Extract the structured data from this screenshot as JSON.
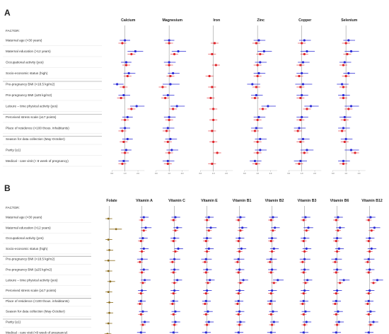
{
  "panel_a": {
    "letter": "A",
    "factor_header": "FACTOR:",
    "factors": [
      "Maternal age (>30 years)",
      "Maternal education (>12 years)",
      "Occupational activity (yes)",
      "Socio-economic status (high)",
      "Pre-pregnancy BMI (<18.5 kg/m2)",
      "Pre-pregnancy BMI (≥25 kg/m2)",
      "Leisure – time physical activity (yes)",
      "Perceived stress scale (≥17 points)",
      "Place of residence (<100 thous. inhabitants)",
      "Season for data collection (May-October)",
      "Parity (≥1)",
      "Medical - care visit (< 8 week of pregnancy)"
    ]
  },
  "panel_b": {
    "letter": "B",
    "factor_header": "FACTOR:",
    "factors": [
      "Maternal age (>30 years)",
      "Maternal education (>12 years)",
      "Occupational activity (yes)",
      "Socio-economic status (high)",
      "Pre-pregnancy BMI (<18.5 kg/m2)",
      "Pre-pregnancy BMI (≥25 kg/m2)",
      "Leisure – time physical activity (yes)",
      "Perceived stress scale (≥17 points)",
      "Place of residence (<100 thous. inhabitants)",
      "Season for data collection (May-October)",
      "Parity (≥1)",
      "Medical - care visit (<8 week of pregnancy)"
    ]
  },
  "colors": {
    "blue": "#2b2bd6",
    "red": "#e0242a",
    "olive": "#8a6a1a",
    "reference_line": "#999999",
    "grid": "#cccccc"
  },
  "chart_data": [
    {
      "type": "scatter",
      "panel": "A",
      "axis_ticks": [
        "0.0",
        "1.0",
        "2.0"
      ],
      "xlim": [
        0,
        2.5
      ],
      "reference_value": 1,
      "series": [
        {
          "name": "Calcium",
          "blue": [
            1.0,
            1.8,
            1.1,
            1.3,
            0.4,
            0.9,
            1.9,
            1.2,
            1.0,
            1.2,
            1.1,
            0.9
          ],
          "red": [
            0.8,
            1.5,
            1.1,
            1.2,
            0.9,
            0.7,
            1.5,
            1.0,
            0.8,
            0.9,
            1.0,
            0.8
          ],
          "blue_lo": [
            0.6,
            1.2,
            0.7,
            0.9,
            0.1,
            0.5,
            1.4,
            0.8,
            0.6,
            0.8,
            0.7,
            0.5
          ],
          "blue_hi": [
            1.4,
            2.4,
            1.5,
            1.8,
            0.9,
            1.4,
            2.5,
            1.6,
            1.4,
            1.6,
            1.5,
            1.3
          ]
        },
        {
          "name": "Magnesium",
          "blue": [
            1.0,
            1.7,
            1.0,
            1.3,
            1.1,
            0.9,
            1.6,
            1.0,
            0.9,
            1.1,
            1.2,
            0.9
          ],
          "red": [
            1.0,
            1.4,
            1.0,
            1.1,
            0.5,
            0.7,
            1.3,
            1.0,
            0.8,
            0.9,
            1.0,
            0.9
          ],
          "blue_lo": [
            0.6,
            1.2,
            0.6,
            0.9,
            0.5,
            0.5,
            1.1,
            0.6,
            0.5,
            0.7,
            0.8,
            0.5
          ],
          "blue_hi": [
            1.4,
            2.3,
            1.5,
            1.8,
            1.8,
            1.4,
            2.2,
            1.5,
            1.4,
            1.6,
            1.7,
            1.4
          ]
        },
        {
          "name": "Iron",
          "blue": [
            null,
            null,
            null,
            null,
            null,
            null,
            null,
            null,
            null,
            null,
            null,
            null
          ],
          "red": [
            1.1,
            0.9,
            1.2,
            0.7,
            0.9,
            0.8,
            1.0,
            1.0,
            0.9,
            1.0,
            1.3,
            0.9
          ],
          "blue_lo": [
            null,
            null,
            null,
            null,
            null,
            null,
            null,
            null,
            null,
            null,
            null,
            null
          ],
          "blue_hi": [
            null,
            null,
            null,
            null,
            null,
            null,
            null,
            null,
            null,
            null,
            null,
            null
          ]
        },
        {
          "name": "Zinc",
          "blue": [
            1.1,
            1.5,
            1.2,
            1.1,
            0.6,
            0.9,
            1.8,
            1.1,
            0.9,
            1.2,
            1.2,
            0.8
          ],
          "red": [
            0.9,
            1.2,
            1.0,
            1.0,
            0.9,
            0.8,
            1.4,
            1.0,
            0.8,
            1.0,
            1.0,
            0.9
          ],
          "blue_lo": [
            0.7,
            1.0,
            0.8,
            0.7,
            0.2,
            0.5,
            1.3,
            0.7,
            0.5,
            0.8,
            0.8,
            0.4
          ],
          "blue_hi": [
            1.6,
            2.1,
            1.7,
            1.6,
            1.2,
            1.4,
            2.4,
            1.6,
            1.4,
            1.7,
            1.7,
            1.3
          ]
        },
        {
          "name": "Copper",
          "blue": [
            1.2,
            1.4,
            1.1,
            1.0,
            1.1,
            1.0,
            1.7,
            1.0,
            0.8,
            1.1,
            1.4,
            0.9
          ],
          "red": [
            1.0,
            1.2,
            0.9,
            0.8,
            0.9,
            0.9,
            1.4,
            0.9,
            0.7,
            0.9,
            1.2,
            0.8
          ],
          "blue_lo": [
            0.8,
            0.9,
            0.7,
            0.6,
            0.5,
            0.6,
            1.2,
            0.6,
            0.4,
            0.7,
            0.9,
            0.4
          ],
          "blue_hi": [
            1.7,
            2.0,
            1.6,
            1.5,
            1.8,
            1.5,
            2.3,
            1.5,
            1.3,
            1.6,
            1.9,
            1.4
          ]
        },
        {
          "name": "Selenium",
          "blue": [
            1.2,
            1.4,
            0.9,
            1.2,
            0.7,
            0.8,
            1.4,
            0.9,
            0.8,
            1.0,
            1.4,
            0.8
          ],
          "red": [
            1.0,
            1.1,
            0.8,
            1.0,
            0.8,
            0.8,
            1.2,
            0.9,
            0.7,
            0.9,
            1.7,
            0.8
          ],
          "blue_lo": [
            0.8,
            0.9,
            0.5,
            0.8,
            0.3,
            0.4,
            0.9,
            0.5,
            0.4,
            0.6,
            0.9,
            0.4
          ],
          "blue_hi": [
            1.7,
            2.0,
            1.4,
            1.7,
            1.2,
            1.3,
            2.0,
            1.4,
            1.3,
            1.5,
            2.0,
            1.3
          ]
        }
      ]
    },
    {
      "type": "scatter",
      "panel": "B",
      "axis_ticks": [
        "0.0",
        "1.0",
        "2.0"
      ],
      "xlim": [
        0,
        2.5
      ],
      "reference_value": 1,
      "series": [
        {
          "name": "Folate",
          "olive": [
            0.9,
            1.7,
            0.9,
            1.0,
            0.9,
            0.9,
            1.1,
            0.9,
            1.0,
            1.0,
            0.9,
            0.8
          ],
          "olive_lo": [
            0.6,
            1.0,
            0.6,
            0.7,
            0.5,
            0.6,
            0.8,
            0.6,
            0.7,
            0.7,
            0.6,
            0.5
          ],
          "olive_hi": [
            1.3,
            2.3,
            1.3,
            1.4,
            1.6,
            1.3,
            1.6,
            1.3,
            1.4,
            1.4,
            1.3,
            1.2
          ]
        },
        {
          "name": "Vitamin A",
          "blue": [
            1.2,
            1.4,
            1.1,
            1.2,
            1.0,
            1.2,
            1.3,
            1.0,
            0.9,
            1.1,
            1.3,
            0.9
          ],
          "red": [
            1.0,
            1.2,
            0.9,
            1.0,
            0.8,
            1.0,
            1.1,
            0.9,
            0.8,
            0.9,
            1.1,
            0.8
          ],
          "blue_lo": [
            0.8,
            0.9,
            0.7,
            0.8,
            0.5,
            0.8,
            0.9,
            0.6,
            0.6,
            0.7,
            0.9,
            0.5
          ],
          "blue_hi": [
            1.7,
            2.0,
            1.6,
            1.7,
            1.6,
            1.7,
            1.9,
            1.5,
            1.4,
            1.6,
            1.8,
            1.4
          ]
        },
        {
          "name": "Vitamin C",
          "blue": [
            1.1,
            1.3,
            1.0,
            1.4,
            1.0,
            1.0,
            1.3,
            1.0,
            0.9,
            1.1,
            1.1,
            0.9
          ],
          "red": [
            0.9,
            1.1,
            0.9,
            1.1,
            0.8,
            0.9,
            1.0,
            0.9,
            0.8,
            0.9,
            1.0,
            0.8
          ],
          "blue_lo": [
            0.7,
            0.9,
            0.6,
            1.0,
            0.5,
            0.6,
            0.9,
            0.6,
            0.6,
            0.7,
            0.7,
            0.5
          ],
          "blue_hi": [
            1.6,
            1.8,
            1.5,
            1.9,
            1.6,
            1.5,
            1.8,
            1.5,
            1.4,
            1.6,
            1.6,
            1.4
          ]
        },
        {
          "name": "Vitamin E",
          "blue": [
            1.2,
            1.4,
            1.0,
            1.2,
            0.9,
            1.0,
            1.3,
            1.0,
            0.9,
            1.1,
            1.2,
            0.9
          ],
          "red": [
            1.0,
            1.2,
            0.9,
            1.0,
            0.8,
            0.9,
            1.1,
            0.9,
            0.8,
            0.9,
            1.0,
            0.8
          ],
          "blue_lo": [
            0.8,
            0.9,
            0.6,
            0.8,
            0.4,
            0.6,
            0.9,
            0.6,
            0.5,
            0.7,
            0.8,
            0.5
          ],
          "blue_hi": [
            1.7,
            2.0,
            1.5,
            1.7,
            1.5,
            1.5,
            1.8,
            1.5,
            1.4,
            1.6,
            1.7,
            1.4
          ]
        },
        {
          "name": "Vitamin B1",
          "blue": [
            1.1,
            1.3,
            1.0,
            1.2,
            0.9,
            1.0,
            1.4,
            1.0,
            0.9,
            1.0,
            1.1,
            0.9
          ],
          "red": [
            0.9,
            1.1,
            0.9,
            1.0,
            0.8,
            0.9,
            1.1,
            0.9,
            0.8,
            0.9,
            1.0,
            0.8
          ],
          "blue_lo": [
            0.7,
            0.9,
            0.6,
            0.8,
            0.4,
            0.6,
            1.0,
            0.6,
            0.5,
            0.6,
            0.7,
            0.5
          ],
          "blue_hi": [
            1.6,
            1.8,
            1.5,
            1.7,
            1.5,
            1.5,
            1.9,
            1.5,
            1.4,
            1.5,
            1.6,
            1.4
          ]
        },
        {
          "name": "Vitamin B2",
          "blue": [
            1.1,
            1.3,
            1.0,
            1.2,
            0.9,
            1.0,
            1.6,
            1.0,
            0.9,
            1.1,
            1.2,
            0.9
          ],
          "red": [
            0.9,
            1.1,
            0.9,
            1.0,
            0.8,
            0.9,
            1.2,
            0.9,
            0.8,
            0.9,
            1.0,
            0.8
          ],
          "blue_lo": [
            0.7,
            0.9,
            0.6,
            0.8,
            0.4,
            0.6,
            1.1,
            0.6,
            0.5,
            0.7,
            0.8,
            0.5
          ],
          "blue_hi": [
            1.6,
            1.8,
            1.5,
            1.7,
            1.5,
            1.5,
            2.2,
            1.5,
            1.4,
            1.6,
            1.7,
            1.4
          ]
        },
        {
          "name": "Vitamin B3",
          "blue": [
            1.1,
            1.4,
            1.0,
            1.2,
            1.0,
            1.0,
            1.3,
            1.0,
            0.9,
            1.1,
            1.2,
            0.9
          ],
          "red": [
            0.9,
            1.2,
            0.9,
            1.0,
            0.8,
            0.9,
            1.1,
            0.9,
            0.8,
            0.9,
            1.0,
            0.8
          ],
          "blue_lo": [
            0.7,
            0.9,
            0.6,
            0.8,
            0.5,
            0.6,
            0.9,
            0.6,
            0.5,
            0.7,
            0.8,
            0.5
          ],
          "blue_hi": [
            1.6,
            1.9,
            1.5,
            1.7,
            1.6,
            1.5,
            1.8,
            1.5,
            1.4,
            1.6,
            1.7,
            1.4
          ]
        },
        {
          "name": "Vitamin B6",
          "blue": [
            1.1,
            1.3,
            1.0,
            1.2,
            0.9,
            1.0,
            1.7,
            1.0,
            0.9,
            1.1,
            1.2,
            0.9
          ],
          "red": [
            0.9,
            1.1,
            0.9,
            1.0,
            0.8,
            0.9,
            1.3,
            0.9,
            0.8,
            0.9,
            1.0,
            0.8
          ],
          "blue_lo": [
            0.7,
            0.9,
            0.6,
            0.8,
            0.4,
            0.6,
            1.2,
            0.6,
            0.5,
            0.7,
            0.8,
            0.5
          ],
          "blue_hi": [
            1.6,
            1.8,
            1.5,
            1.7,
            1.5,
            1.5,
            2.3,
            1.5,
            1.4,
            1.6,
            1.7,
            1.4
          ]
        },
        {
          "name": "Vitamin B12",
          "blue": [
            1.1,
            1.5,
            1.0,
            1.2,
            0.9,
            1.0,
            1.8,
            1.0,
            0.9,
            1.1,
            1.4,
            0.9
          ],
          "red": [
            0.9,
            1.2,
            0.9,
            1.0,
            0.8,
            0.9,
            1.4,
            0.9,
            0.8,
            0.9,
            1.1,
            0.8
          ],
          "blue_lo": [
            0.7,
            1.0,
            0.6,
            0.8,
            0.4,
            0.6,
            1.3,
            0.6,
            0.5,
            0.7,
            0.9,
            0.5
          ],
          "blue_hi": [
            1.6,
            2.1,
            1.5,
            1.7,
            1.5,
            1.5,
            2.4,
            1.5,
            1.4,
            1.6,
            1.9,
            1.4
          ]
        }
      ]
    }
  ]
}
